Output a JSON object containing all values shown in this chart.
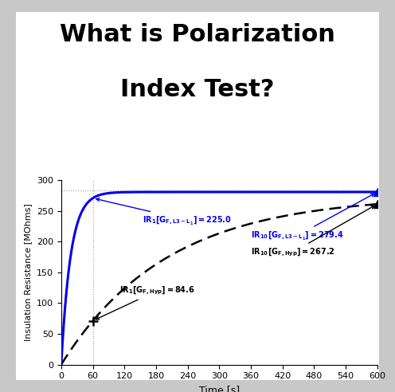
{
  "title_line1": "What is Polarization",
  "title_line2": "Index Test?",
  "title_fontsize": 22,
  "title_fontweight": "bold",
  "xlabel": "Time [s]",
  "ylabel": "Insulation Resistance [MOhms]",
  "xlim": [
    0,
    600
  ],
  "ylim": [
    0,
    300
  ],
  "xticks": [
    0,
    60,
    120,
    180,
    240,
    300,
    360,
    420,
    480,
    540,
    600
  ],
  "yticks": [
    0,
    50,
    100,
    150,
    200,
    250,
    300
  ],
  "blue_color": "#0000EE",
  "black_color": "#000000",
  "bg_color": "#FFFFFF",
  "outer_bg": "#C8C8C8",
  "hline_y": 284,
  "hline_color": "#A0A0A0",
  "vline_x": 60,
  "vline_color": "#A0A0A0",
  "tau_blue": 18,
  "saturation_blue": 281,
  "tau_black": 200,
  "saturation_black": 275,
  "t1_blue": 225.0,
  "t1_black": 84.6,
  "t10_blue": 279.4,
  "t10_black": 267.2
}
